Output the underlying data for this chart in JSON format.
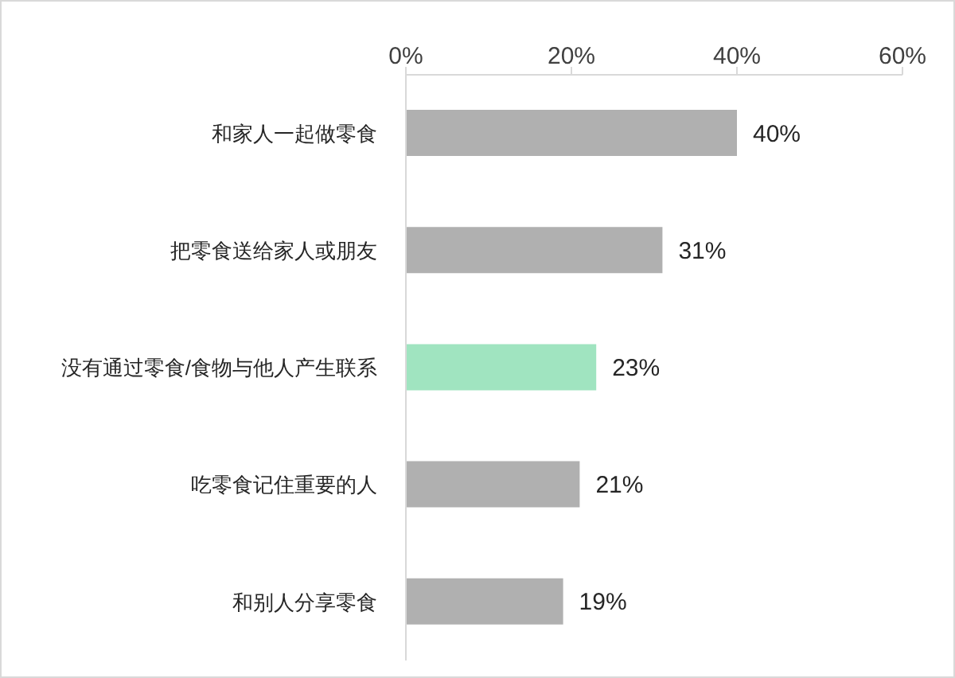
{
  "chart_data": {
    "type": "bar",
    "orientation": "horizontal",
    "categories": [
      "和家人一起做零食",
      "把零食送给家人或朋友",
      "没有通过零食/食物与他人产生联系",
      "吃零食记住重要的人",
      "和别人分享零食"
    ],
    "values": [
      40,
      31,
      23,
      21,
      19
    ],
    "colors": [
      "#b0b0b0",
      "#b0b0b0",
      "#a0e4c0",
      "#b0b0b0",
      "#b0b0b0"
    ],
    "value_labels": [
      "40%",
      "31%",
      "23%",
      "21%",
      "19%"
    ],
    "xlim": [
      0,
      60
    ],
    "xticks": [
      {
        "value": 0,
        "label": "0%"
      },
      {
        "value": 20,
        "label": "20%"
      },
      {
        "value": 40,
        "label": "40%"
      },
      {
        "value": 60,
        "label": "60%"
      }
    ]
  }
}
